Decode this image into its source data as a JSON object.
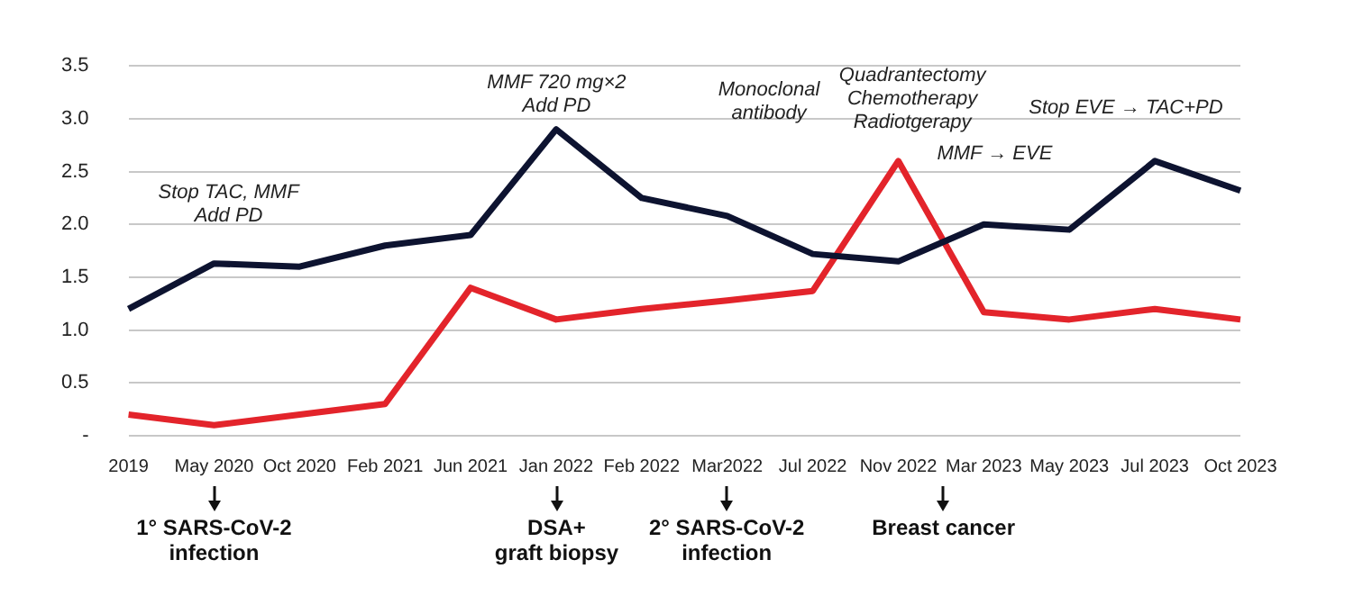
{
  "chart_data": {
    "type": "line",
    "categories": [
      "2019",
      "May 2020",
      "Oct 2020",
      "Feb 2021",
      "Jun 2021",
      "Jan 2022",
      "Feb 2022",
      "Mar2022",
      "Jul 2022",
      "Nov 2022",
      "Mar 2023",
      "May 2023",
      "Jul 2023",
      "Oct 2023"
    ],
    "series": [
      {
        "color": "#0d1330",
        "values": [
          1.2,
          1.63,
          1.6,
          1.8,
          1.9,
          2.9,
          2.25,
          2.08,
          1.72,
          1.65,
          2.0,
          1.95,
          2.6,
          2.32
        ]
      },
      {
        "color": "#e3242b",
        "values": [
          0.2,
          0.1,
          0.2,
          0.3,
          1.4,
          1.1,
          1.2,
          1.28,
          1.37,
          2.6,
          1.17,
          1.1,
          1.2,
          1.1
        ]
      }
    ],
    "ylim": [
      0,
      3.5
    ],
    "yticks": [
      {
        "value": 0,
        "label": "-"
      },
      0.5,
      {
        "value": 1,
        "label": "1.0"
      },
      1.5,
      {
        "value": 2,
        "label": "2.0"
      },
      2.5,
      {
        "value": 3,
        "label": "3.0"
      },
      3.5
    ],
    "grid": "y",
    "legend": false,
    "marker": "none",
    "line_style": "solid",
    "annotations": [
      "Stop TAC, MMF\nAdd PD",
      "MMF 720 mg×2\nAdd PD",
      "Monoclonal\nantibody",
      "Quadrantectomy\nChemotherapy\nRadiotgerapy",
      "MMF → EVE",
      "Stop EVE → TAC+PD",
      "1° SARS-CoV-2\ninfection",
      "DSA+\ngraft biopsy",
      "2° SARS-CoV-2\ninfection",
      "Breast cancer"
    ]
  }
}
